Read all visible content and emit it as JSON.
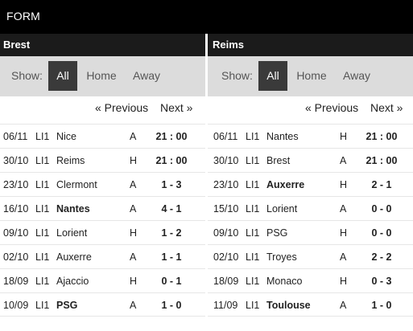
{
  "header": {
    "title": "FORM"
  },
  "panels": [
    {
      "team": "Brest",
      "show_label": "Show:",
      "tabs": [
        {
          "label": "All",
          "active": true
        },
        {
          "label": "Home",
          "active": false
        },
        {
          "label": "Away",
          "active": false
        }
      ],
      "previous_label": "« Previous",
      "next_label": "Next »",
      "matches": [
        {
          "date": "06/11",
          "comp": "LI1",
          "opponent": "Nice",
          "venue": "A",
          "score": "21 : 00",
          "bold": false
        },
        {
          "date": "30/10",
          "comp": "LI1",
          "opponent": "Reims",
          "venue": "H",
          "score": "21 : 00",
          "bold": false
        },
        {
          "date": "23/10",
          "comp": "LI1",
          "opponent": "Clermont",
          "venue": "A",
          "score": "1 - 3",
          "bold": false
        },
        {
          "date": "16/10",
          "comp": "LI1",
          "opponent": "Nantes",
          "venue": "A",
          "score": "4 - 1",
          "bold": true
        },
        {
          "date": "09/10",
          "comp": "LI1",
          "opponent": "Lorient",
          "venue": "H",
          "score": "1 - 2",
          "bold": false
        },
        {
          "date": "02/10",
          "comp": "LI1",
          "opponent": "Auxerre",
          "venue": "A",
          "score": "1 - 1",
          "bold": false
        },
        {
          "date": "18/09",
          "comp": "LI1",
          "opponent": "Ajaccio",
          "venue": "H",
          "score": "0 - 1",
          "bold": false
        },
        {
          "date": "10/09",
          "comp": "LI1",
          "opponent": "PSG",
          "venue": "A",
          "score": "1 - 0",
          "bold": true
        }
      ]
    },
    {
      "team": "Reims",
      "show_label": "Show:",
      "tabs": [
        {
          "label": "All",
          "active": true
        },
        {
          "label": "Home",
          "active": false
        },
        {
          "label": "Away",
          "active": false
        }
      ],
      "previous_label": "« Previous",
      "next_label": "Next »",
      "matches": [
        {
          "date": "06/11",
          "comp": "LI1",
          "opponent": "Nantes",
          "venue": "H",
          "score": "21 : 00",
          "bold": false
        },
        {
          "date": "30/10",
          "comp": "LI1",
          "opponent": "Brest",
          "venue": "A",
          "score": "21 : 00",
          "bold": false
        },
        {
          "date": "23/10",
          "comp": "LI1",
          "opponent": "Auxerre",
          "venue": "H",
          "score": "2 - 1",
          "bold": true
        },
        {
          "date": "15/10",
          "comp": "LI1",
          "opponent": "Lorient",
          "venue": "A",
          "score": "0 - 0",
          "bold": false
        },
        {
          "date": "09/10",
          "comp": "LI1",
          "opponent": "PSG",
          "venue": "H",
          "score": "0 - 0",
          "bold": false
        },
        {
          "date": "02/10",
          "comp": "LI1",
          "opponent": "Troyes",
          "venue": "A",
          "score": "2 - 2",
          "bold": false
        },
        {
          "date": "18/09",
          "comp": "LI1",
          "opponent": "Monaco",
          "venue": "H",
          "score": "0 - 3",
          "bold": false
        },
        {
          "date": "11/09",
          "comp": "LI1",
          "opponent": "Toulouse",
          "venue": "A",
          "score": "1 - 0",
          "bold": true
        }
      ]
    }
  ]
}
